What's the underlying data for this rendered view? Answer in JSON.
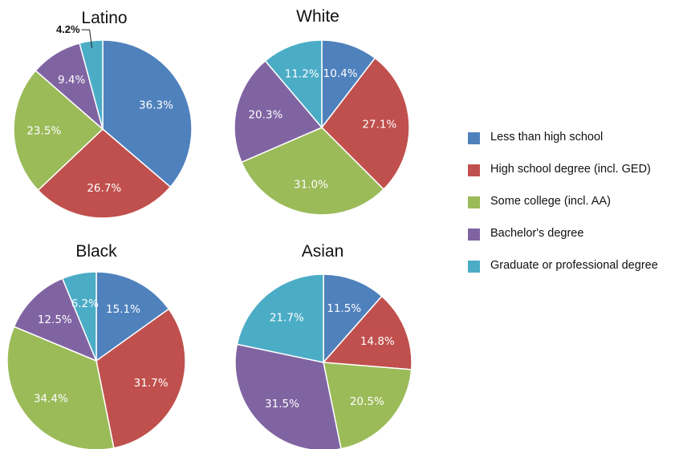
{
  "colors": [
    "#4F81BD",
    "#C0504D",
    "#9BBB59",
    "#8064A2",
    "#4BACC6"
  ],
  "legend": [
    "Less than high school",
    "High school degree (incl. GED)",
    "Some college (incl. AA)",
    "Bachelor's degree",
    "Graduate or professional degree"
  ],
  "chart_data": [
    {
      "type": "pie",
      "title": "Latino",
      "categories": [
        "Less than high school",
        "High school degree (incl. GED)",
        "Some college (incl. AA)",
        "Bachelor's degree",
        "Graduate or professional degree"
      ],
      "values": [
        36.3,
        26.7,
        23.5,
        9.4,
        4.2
      ],
      "labels": [
        "36.3%",
        "26.7%",
        "23.5%",
        "9.4%",
        "4.2%"
      ]
    },
    {
      "type": "pie",
      "title": "White",
      "categories": [
        "Less than high school",
        "High school degree (incl. GED)",
        "Some college (incl. AA)",
        "Bachelor's degree",
        "Graduate or professional degree"
      ],
      "values": [
        10.4,
        27.1,
        31.0,
        20.3,
        11.2
      ],
      "labels": [
        "10.4%",
        "27.1%",
        "31.0%",
        "20.3%",
        "11.2%"
      ]
    },
    {
      "type": "pie",
      "title": "Black",
      "categories": [
        "Less than high school",
        "High school degree (incl. GED)",
        "Some college (incl. AA)",
        "Bachelor's degree",
        "Graduate or professional degree"
      ],
      "values": [
        15.1,
        31.7,
        34.4,
        12.5,
        6.2
      ],
      "labels": [
        "15.1%",
        "31.7%",
        "34.4%",
        "12.5%",
        "6.2%"
      ]
    },
    {
      "type": "pie",
      "title": "Asian",
      "categories": [
        "Less than high school",
        "High school degree (incl. GED)",
        "Some college (incl. AA)",
        "Bachelor's degree",
        "Graduate or professional degree"
      ],
      "values": [
        11.5,
        14.8,
        20.5,
        31.5,
        21.7
      ],
      "labels": [
        "11.5%",
        "14.8%",
        "20.5%",
        "31.5%",
        "21.7%"
      ]
    }
  ]
}
